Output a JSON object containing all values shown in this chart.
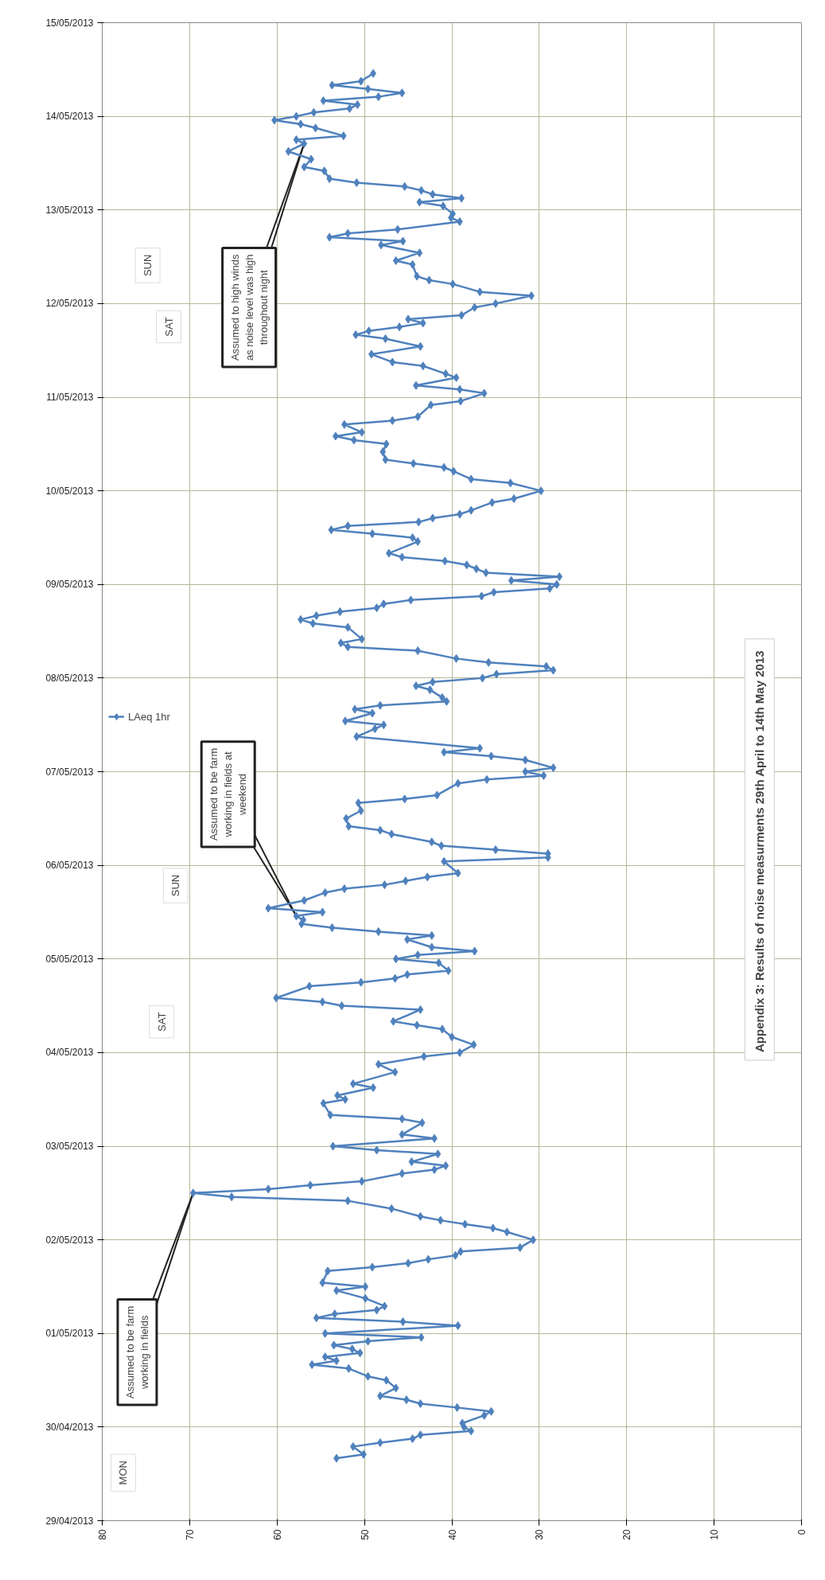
{
  "chart_data": {
    "type": "line",
    "title": "Appendix  3: Results of noise measurments 29th April to 14th May 2013",
    "orientation": "horizontal",
    "ylim": [
      "2013-04-29",
      "2013-05-15"
    ],
    "yticks": [
      {
        "value": "2013-04-29",
        "label": "29/04/2013"
      },
      {
        "value": "2013-04-30",
        "label": "30/04/2013"
      },
      {
        "value": "2013-05-01",
        "label": "01/05/2013"
      },
      {
        "value": "2013-05-02",
        "label": "02/05/2013"
      },
      {
        "value": "2013-05-03",
        "label": "03/05/2013"
      },
      {
        "value": "2013-05-04",
        "label": "04/05/2013"
      },
      {
        "value": "2013-05-05",
        "label": "05/05/2013"
      },
      {
        "value": "2013-05-06",
        "label": "06/05/2013"
      },
      {
        "value": "2013-05-07",
        "label": "07/05/2013"
      },
      {
        "value": "2013-05-08",
        "label": "08/05/2013"
      },
      {
        "value": "2013-05-09",
        "label": "09/05/2013"
      },
      {
        "value": "2013-05-10",
        "label": "10/05/2013"
      },
      {
        "value": "2013-05-11",
        "label": "11/05/2013"
      },
      {
        "value": "2013-05-12",
        "label": "12/05/2013"
      },
      {
        "value": "2013-05-13",
        "label": "13/05/2013"
      },
      {
        "value": "2013-05-14",
        "label": "14/05/2013"
      },
      {
        "value": "2013-05-15",
        "label": "15/05/2013"
      }
    ],
    "xlim": [
      80,
      0
    ],
    "xticks": [
      0,
      10,
      20,
      30,
      40,
      50,
      60,
      70,
      80
    ],
    "grid": true,
    "legend": "left",
    "marker": "diamond",
    "series": [
      {
        "name": "LAeq 1hr",
        "color": "#4f81bd",
        "x": [
          "2013-04-29T16:00",
          "2013-04-29T17:00",
          "2013-04-29T19:00",
          "2013-04-29T20:00",
          "2013-04-29T21:00",
          "2013-04-29T22:00",
          "2013-04-29T23:00",
          "2013-04-30T00:00",
          "2013-04-30T01:00",
          "2013-04-30T03:00",
          "2013-04-30T04:00",
          "2013-04-30T05:00",
          "2013-04-30T06:00",
          "2013-04-30T07:00",
          "2013-04-30T08:00",
          "2013-04-30T10:00",
          "2013-04-30T12:00",
          "2013-04-30T13:00",
          "2013-04-30T15:00",
          "2013-04-30T16:00",
          "2013-04-30T17:00",
          "2013-04-30T18:00",
          "2013-04-30T19:00",
          "2013-04-30T20:00",
          "2013-04-30T21:00",
          "2013-04-30T22:00",
          "2013-04-30T23:00",
          "2013-05-01T00:00",
          "2013-05-01T02:00",
          "2013-05-01T03:00",
          "2013-05-01T04:00",
          "2013-05-01T05:00",
          "2013-05-01T06:00",
          "2013-05-01T07:00",
          "2013-05-01T09:00",
          "2013-05-01T11:00",
          "2013-05-01T12:00",
          "2013-05-01T13:00",
          "2013-05-01T16:00",
          "2013-05-01T17:00",
          "2013-05-01T18:00",
          "2013-05-01T19:00",
          "2013-05-01T20:00",
          "2013-05-01T21:00",
          "2013-05-01T22:00",
          "2013-05-02T00:00",
          "2013-05-02T02:00",
          "2013-05-02T03:00",
          "2013-05-02T04:00",
          "2013-05-02T05:00",
          "2013-05-02T06:00",
          "2013-05-02T08:00",
          "2013-05-02T10:00",
          "2013-05-02T11:00",
          "2013-05-02T12:00",
          "2013-05-02T13:00",
          "2013-05-02T14:00",
          "2013-05-02T15:00",
          "2013-05-02T17:00",
          "2013-05-02T18:00",
          "2013-05-02T19:00",
          "2013-05-02T20:00",
          "2013-05-02T22:00",
          "2013-05-02T23:00",
          "2013-05-03T00:00",
          "2013-05-03T02:00",
          "2013-05-03T03:00",
          "2013-05-03T06:00",
          "2013-05-03T07:00",
          "2013-05-03T08:00",
          "2013-05-03T11:00",
          "2013-05-03T12:00",
          "2013-05-03T13:00",
          "2013-05-03T15:00",
          "2013-05-03T16:00",
          "2013-05-03T19:00",
          "2013-05-03T21:00",
          "2013-05-03T23:00",
          "2013-05-04T00:00",
          "2013-05-04T02:00",
          "2013-05-04T04:00",
          "2013-05-04T06:00",
          "2013-05-04T07:00",
          "2013-05-04T08:00",
          "2013-05-04T11:00",
          "2013-05-04T12:00",
          "2013-05-04T13:00",
          "2013-05-04T14:00",
          "2013-05-04T17:00",
          "2013-05-04T18:00",
          "2013-05-04T19:00",
          "2013-05-04T20:00",
          "2013-05-04T21:00",
          "2013-05-04T23:00",
          "2013-05-05T00:00",
          "2013-05-05T01:00",
          "2013-05-05T02:00",
          "2013-05-05T03:00",
          "2013-05-05T05:00",
          "2013-05-05T06:00",
          "2013-05-05T07:00",
          "2013-05-05T08:00",
          "2013-05-05T09:00",
          "2013-05-05T10:00",
          "2013-05-05T11:00",
          "2013-05-05T12:00",
          "2013-05-05T13:00",
          "2013-05-05T15:00",
          "2013-05-05T17:00",
          "2013-05-05T18:00",
          "2013-05-05T19:00",
          "2013-05-05T20:00",
          "2013-05-05T21:00",
          "2013-05-05T22:00",
          "2013-05-06T01:00",
          "2013-05-06T02:00",
          "2013-05-06T03:00",
          "2013-05-06T04:00",
          "2013-05-06T05:00",
          "2013-05-06T06:00",
          "2013-05-06T08:00",
          "2013-05-06T09:00",
          "2013-05-06T10:00",
          "2013-05-06T12:00",
          "2013-05-06T14:00",
          "2013-05-06T16:00",
          "2013-05-06T17:00",
          "2013-05-06T18:00",
          "2013-05-06T21:00",
          "2013-05-06T22:00",
          "2013-05-06T23:00",
          "2013-05-07T00:00",
          "2013-05-07T01:00",
          "2013-05-07T03:00",
          "2013-05-07T04:00",
          "2013-05-07T05:00",
          "2013-05-07T06:00",
          "2013-05-07T09:00",
          "2013-05-07T11:00",
          "2013-05-07T12:00",
          "2013-05-07T13:00",
          "2013-05-07T15:00",
          "2013-05-07T16:00",
          "2013-05-07T17:00",
          "2013-05-07T18:00",
          "2013-05-07T19:00",
          "2013-05-07T21:00",
          "2013-05-07T22:00",
          "2013-05-07T23:00",
          "2013-05-08T00:00",
          "2013-05-08T01:00",
          "2013-05-08T02:00",
          "2013-05-08T03:00",
          "2013-05-08T04:00",
          "2013-05-08T05:00",
          "2013-05-08T07:00",
          "2013-05-08T08:00",
          "2013-05-08T09:00",
          "2013-05-08T10:00",
          "2013-05-08T13:00",
          "2013-05-08T14:00",
          "2013-05-08T15:00",
          "2013-05-08T16:00",
          "2013-05-08T17:00",
          "2013-05-08T18:00",
          "2013-05-08T19:00",
          "2013-05-08T20:00",
          "2013-05-08T21:00",
          "2013-05-08T22:00",
          "2013-05-08T23:00",
          "2013-05-09T00:00",
          "2013-05-09T01:00",
          "2013-05-09T02:00",
          "2013-05-09T03:00",
          "2013-05-09T04:00",
          "2013-05-09T05:00",
          "2013-05-09T06:00",
          "2013-05-09T07:00",
          "2013-05-09T08:00",
          "2013-05-09T11:00",
          "2013-05-09T12:00",
          "2013-05-09T13:00",
          "2013-05-09T14:00",
          "2013-05-09T15:00",
          "2013-05-09T16:00",
          "2013-05-09T17:00",
          "2013-05-09T18:00",
          "2013-05-09T19:00",
          "2013-05-09T21:00",
          "2013-05-09T22:00",
          "2013-05-10T00:00",
          "2013-05-10T02:00",
          "2013-05-10T03:00",
          "2013-05-10T05:00",
          "2013-05-10T06:00",
          "2013-05-10T07:00",
          "2013-05-10T08:00",
          "2013-05-10T10:00",
          "2013-05-10T12:00",
          "2013-05-10T13:00",
          "2013-05-10T14:00",
          "2013-05-10T15:00",
          "2013-05-10T17:00",
          "2013-05-10T18:00",
          "2013-05-10T19:00",
          "2013-05-10T22:00",
          "2013-05-10T23:00",
          "2013-05-11T01:00",
          "2013-05-11T02:00",
          "2013-05-11T03:00",
          "2013-05-11T05:00",
          "2013-05-11T06:00",
          "2013-05-11T08:00",
          "2013-05-11T09:00",
          "2013-05-11T11:00",
          "2013-05-11T13:00",
          "2013-05-11T15:00",
          "2013-05-11T16:00",
          "2013-05-11T17:00",
          "2013-05-11T18:00",
          "2013-05-11T19:00",
          "2013-05-11T20:00",
          "2013-05-11T21:00",
          "2013-05-11T23:00",
          "2013-05-12T00:00",
          "2013-05-12T02:00",
          "2013-05-12T03:00",
          "2013-05-12T05:00",
          "2013-05-12T06:00",
          "2013-05-12T07:00",
          "2013-05-12T10:00",
          "2013-05-12T11:00",
          "2013-05-12T13:00",
          "2013-05-12T15:00",
          "2013-05-12T16:00",
          "2013-05-12T17:00",
          "2013-05-12T18:00",
          "2013-05-12T19:00",
          "2013-05-12T21:00",
          "2013-05-12T22:00",
          "2013-05-12T23:00",
          "2013-05-13T01:00",
          "2013-05-13T02:00",
          "2013-05-13T03:00",
          "2013-05-13T04:00",
          "2013-05-13T05:00",
          "2013-05-13T06:00",
          "2013-05-13T07:00",
          "2013-05-13T08:00",
          "2013-05-13T10:00",
          "2013-05-13T11:00",
          "2013-05-13T13:00",
          "2013-05-13T15:00",
          "2013-05-13T17:00",
          "2013-05-13T18:00",
          "2013-05-13T19:00",
          "2013-05-13T21:00",
          "2013-05-13T22:00",
          "2013-05-13T23:00",
          "2013-05-14T00:00",
          "2013-05-14T01:00",
          "2013-05-14T02:00",
          "2013-05-14T03:00",
          "2013-05-14T04:00",
          "2013-05-14T05:00",
          "2013-05-14T06:00",
          "2013-05-14T07:00",
          "2013-05-14T08:00",
          "2013-05-14T09:00",
          "2013-05-14T11:00"
        ],
        "values": [
          53.2,
          50.1,
          51.3,
          48.2,
          44.5,
          43.6,
          37.8,
          38.6,
          38.8,
          36.3,
          35.5,
          39.4,
          43.6,
          45.2,
          48.2,
          46.4,
          47.5,
          49.6,
          51.8,
          56.0,
          53.2,
          54.5,
          50.5,
          51.4,
          53.5,
          49.6,
          43.5,
          54.5,
          39.3,
          45.6,
          55.5,
          53.4,
          48.6,
          47.7,
          49.9,
          53.2,
          49.9,
          54.8,
          54.2,
          49.1,
          45.0,
          42.7,
          39.6,
          39.0,
          32.2,
          30.7,
          33.7,
          35.3,
          38.5,
          41.3,
          43.6,
          46.9,
          51.9,
          65.2,
          69.6,
          61.0,
          56.2,
          50.3,
          45.7,
          42.0,
          40.7,
          44.6,
          41.6,
          48.6,
          53.6,
          42.0,
          45.7,
          43.4,
          45.7,
          53.9,
          54.7,
          52.2,
          53.1,
          49.0,
          51.3,
          46.5,
          48.4,
          43.2,
          39.1,
          37.5,
          40.0,
          41.1,
          44.0,
          46.7,
          43.6,
          52.6,
          54.8,
          60.1,
          56.3,
          50.4,
          46.5,
          45.1,
          40.4,
          41.5,
          46.4,
          43.9,
          37.4,
          42.3,
          45.1,
          42.3,
          48.4,
          53.7,
          57.2,
          57.0,
          57.8,
          54.8,
          61.0,
          56.9,
          54.5,
          52.3,
          47.7,
          45.3,
          42.8,
          39.3,
          40.9,
          29.0,
          29.0,
          35.0,
          41.2,
          42.3,
          46.9,
          48.2,
          51.8,
          52.1,
          50.4,
          50.7,
          45.4,
          41.7,
          39.3,
          36.0,
          29.5,
          31.6,
          28.4,
          31.6,
          35.5,
          40.9,
          36.8,
          50.9,
          48.8,
          47.8,
          52.2,
          49.1,
          51.1,
          48.2,
          40.6,
          41.1,
          42.5,
          44.1,
          42.2,
          36.5,
          34.9,
          28.4,
          29.2,
          35.8,
          39.5,
          43.9,
          51.9,
          52.7,
          50.3,
          51.9,
          55.9,
          57.3,
          55.5,
          52.8,
          48.6,
          47.8,
          44.7,
          36.6,
          35.2,
          28.8,
          28.0,
          33.2,
          27.7,
          36.1,
          37.2,
          38.3,
          40.8,
          45.7,
          47.2,
          43.9,
          44.5,
          49.1,
          53.8,
          51.9,
          43.8,
          42.2,
          39.1,
          37.8,
          35.4,
          32.9,
          29.8,
          33.3,
          37.8,
          39.8,
          40.9,
          44.4,
          47.6,
          47.9,
          47.5,
          51.2,
          53.3,
          50.3,
          52.3,
          46.8,
          43.9,
          42.4,
          39.0,
          36.3,
          39.1,
          44.1,
          39.5,
          40.7,
          43.3,
          46.8,
          49.2,
          43.6,
          47.6,
          51.0,
          49.5,
          46.0,
          43.3,
          45.0,
          38.9,
          37.4,
          35.0,
          30.9,
          36.8,
          39.9,
          42.6,
          44.0,
          44.5,
          46.4,
          43.7,
          48.1,
          45.6,
          54.0,
          51.9,
          46.2,
          39.1,
          40.1,
          39.9,
          41.0,
          43.7,
          38.9,
          42.2,
          43.5,
          45.4,
          50.9,
          54.0,
          54.6,
          56.9,
          56.1,
          58.7,
          56.9,
          57.8,
          52.4,
          55.6,
          57.3,
          60.3,
          57.8,
          55.8,
          51.7,
          50.8,
          54.7,
          48.4,
          45.7,
          49.6,
          53.7,
          50.4,
          49.0
        ]
      }
    ],
    "annotations": [
      {
        "text": "Assumed to be farm\nworking in fields",
        "x": 69.6,
        "y": "2013-05-02T12:00"
      },
      {
        "text": "Assumed to be farm\nworking in fields at\nweekend",
        "x": 57.8,
        "y": "2013-05-05T11:00"
      },
      {
        "text": "Assumed to high winds\nas noise level was high\nthroughout night",
        "x": 56.9,
        "y": "2013-05-13T17:00"
      },
      "MON",
      "SAT",
      "SUN",
      "SAT",
      "SUN"
    ]
  }
}
